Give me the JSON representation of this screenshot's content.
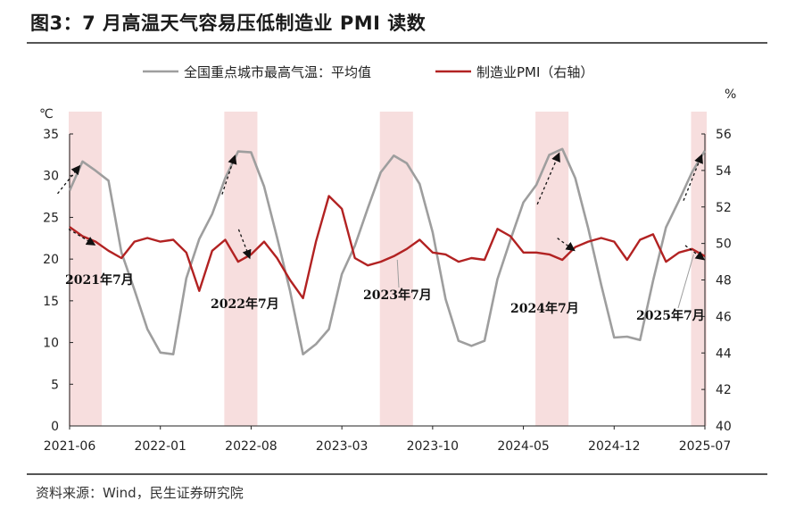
{
  "figure": {
    "title": "图3：7 月高温天气容易压低制造业 PMI 读数",
    "source": "资料来源：Wind，民生证券研究院"
  },
  "chart_data": {
    "type": "line",
    "left_unit": "℃",
    "right_unit": "%",
    "x_tick_labels": [
      "2021-06",
      "2022-01",
      "2022-08",
      "2023-03",
      "2023-10",
      "2024-05",
      "2024-12",
      "2025-07"
    ],
    "left_ylim": [
      0,
      35
    ],
    "left_yticks": [
      0,
      5,
      10,
      15,
      20,
      25,
      30,
      35
    ],
    "right_ylim": [
      40,
      56
    ],
    "right_yticks": [
      40,
      42,
      44,
      46,
      48,
      50,
      52,
      54,
      56
    ],
    "legend_position": "top",
    "series": [
      {
        "name": "全国重点城市最高气温：平均值",
        "axis": "left",
        "color": "#9e9e9e",
        "values": [
          28.2,
          31.7,
          30.6,
          29.4,
          20.8,
          16.3,
          11.6,
          8.8,
          8.6,
          17.7,
          22.4,
          25.4,
          29.7,
          32.9,
          32.8,
          28.7,
          22.6,
          16.2,
          8.6,
          9.8,
          11.6,
          18.2,
          21.6,
          26.1,
          30.4,
          32.4,
          31.5,
          29.0,
          23.2,
          15.2,
          10.2,
          9.6,
          10.2,
          17.6,
          22.3,
          26.8,
          28.9,
          32.5,
          33.2,
          29.7,
          23.7,
          16.9,
          10.6,
          10.7,
          10.3,
          17.4,
          23.8,
          27.0,
          30.4,
          33.0
        ]
      },
      {
        "name": "制造业PMI（右轴）",
        "axis": "right",
        "color": "#b22222",
        "values": [
          50.9,
          50.4,
          50.1,
          49.6,
          49.2,
          50.1,
          50.3,
          50.1,
          50.2,
          49.5,
          47.4,
          49.6,
          50.2,
          49.0,
          49.4,
          50.1,
          49.2,
          48.0,
          47.0,
          50.1,
          52.6,
          51.9,
          49.2,
          48.8,
          49.0,
          49.3,
          49.7,
          50.2,
          49.5,
          49.4,
          49.0,
          49.2,
          49.1,
          50.8,
          50.4,
          49.5,
          49.5,
          49.4,
          49.1,
          49.8,
          50.1,
          50.3,
          50.1,
          49.1,
          50.2,
          50.5,
          49.0,
          49.5,
          49.7,
          49.3
        ]
      }
    ],
    "highlight_bands": [
      {
        "start_month": "2021-06",
        "end_month": "2021-08"
      },
      {
        "start_month": "2022-06",
        "end_month": "2022-08"
      },
      {
        "start_month": "2023-06",
        "end_month": "2023-08"
      },
      {
        "start_month": "2024-06",
        "end_month": "2024-08"
      },
      {
        "start_month": "2025-06",
        "end_month": "2025-07"
      }
    ],
    "annotations": [
      {
        "text": "2021年7月",
        "series": "PMI",
        "index": 1
      },
      {
        "text": "2022年7月",
        "series": "PMI",
        "index": 13
      },
      {
        "text": "2023年7月",
        "series": "PMI",
        "index": 25
      },
      {
        "text": "2024年7月",
        "series": "PMI",
        "index": 37
      },
      {
        "text": "2025年7月",
        "series": "PMI",
        "index": 49
      }
    ]
  }
}
